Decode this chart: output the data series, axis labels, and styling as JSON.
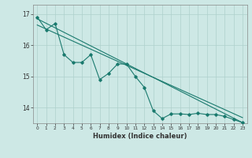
{
  "xlabel": "Humidex (Indice chaleur)",
  "ylabel": "",
  "background_color": "#cde8e5",
  "grid_color": "#aed0cc",
  "line_color": "#1a7a6e",
  "xlim": [
    -0.5,
    23.5
  ],
  "ylim": [
    13.5,
    17.3
  ],
  "yticks": [
    14,
    15,
    16,
    17
  ],
  "xticks": [
    0,
    1,
    2,
    3,
    4,
    5,
    6,
    7,
    8,
    9,
    10,
    11,
    12,
    13,
    14,
    15,
    16,
    17,
    18,
    19,
    20,
    21,
    22,
    23
  ],
  "main_x": [
    0,
    1,
    2,
    3,
    4,
    5,
    6,
    7,
    8,
    9,
    10,
    11,
    12,
    13,
    14,
    15,
    16,
    17,
    18,
    19,
    20,
    21,
    22,
    23
  ],
  "main_y": [
    16.9,
    16.5,
    16.7,
    15.7,
    15.45,
    15.45,
    15.7,
    14.9,
    15.1,
    15.4,
    15.4,
    15.0,
    14.65,
    13.9,
    13.65,
    13.8,
    13.8,
    13.78,
    13.82,
    13.78,
    13.78,
    13.72,
    13.62,
    13.52
  ],
  "trend1_x": [
    0,
    23
  ],
  "trend1_y": [
    16.85,
    13.52
  ],
  "trend2_x": [
    0,
    23
  ],
  "trend2_y": [
    16.65,
    13.68
  ]
}
